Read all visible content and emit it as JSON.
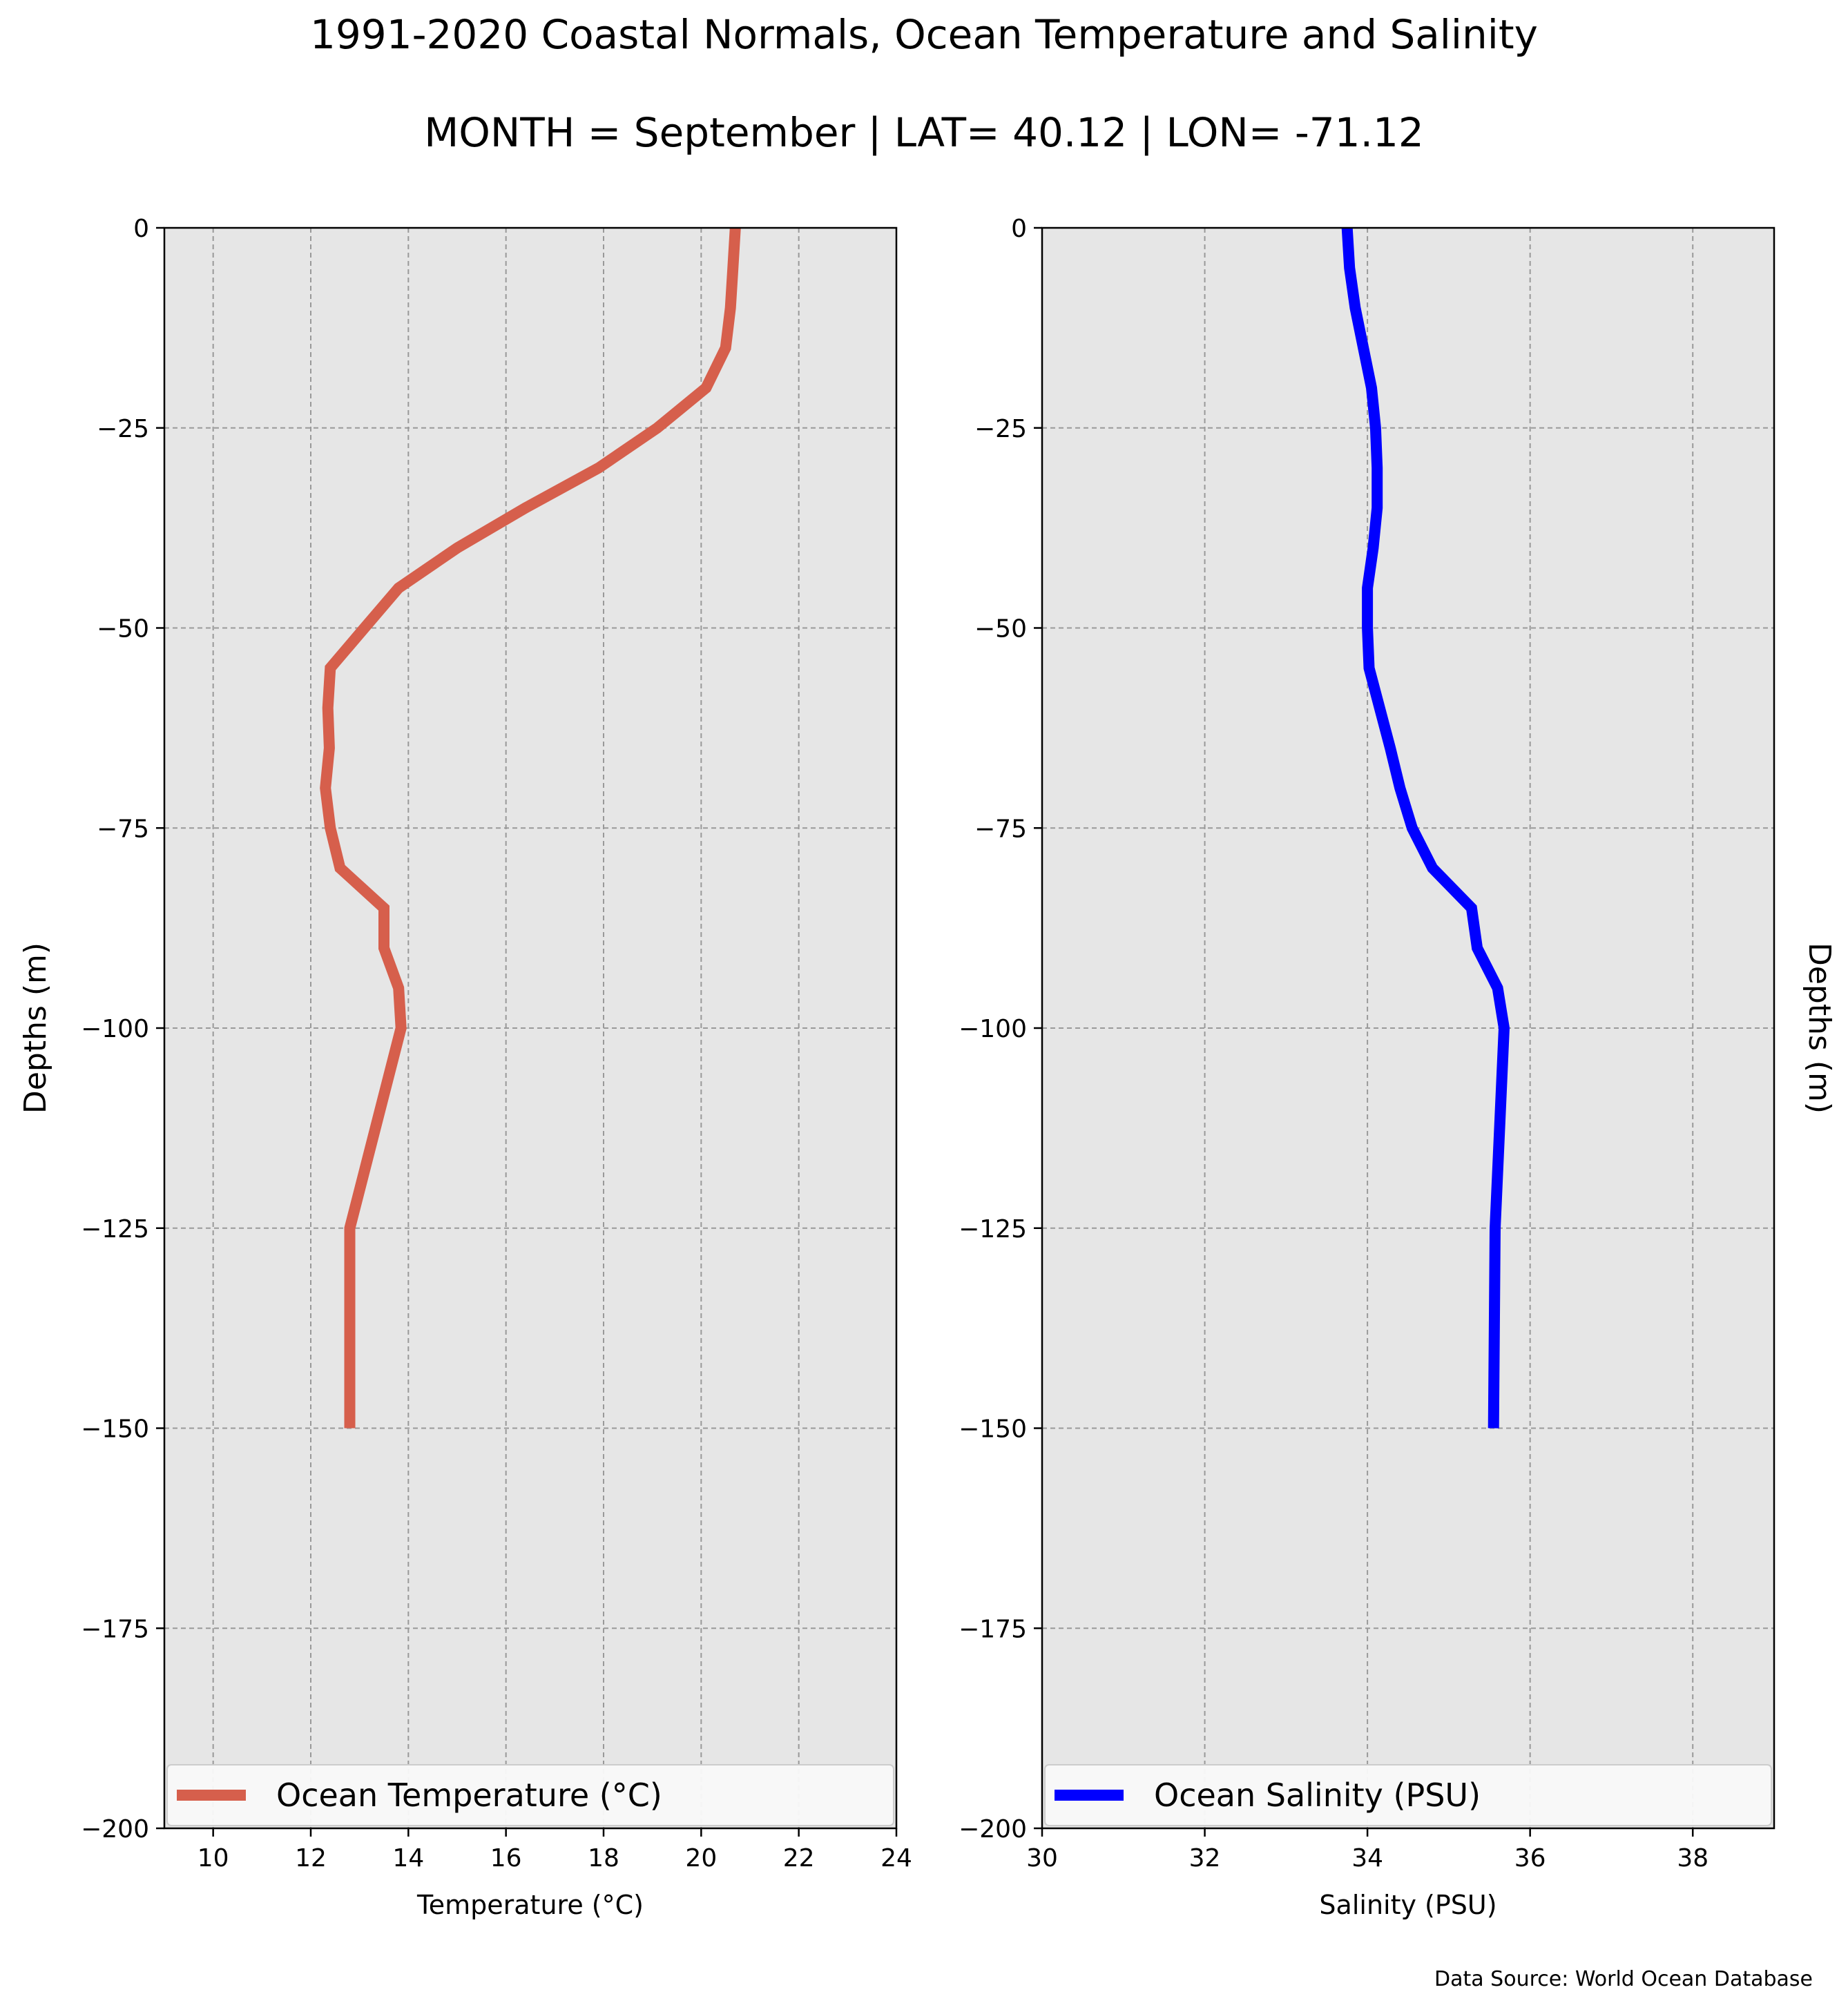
{
  "title": "1991-2020 Coastal Normals, Ocean Temperature and Salinity",
  "subtitle": "MONTH = September | LAT= 40.12 | LON= -71.12",
  "source": "Data Source: World Ocean Database",
  "colors": {
    "temperature": "#d65f4c",
    "salinity": "#0000ff",
    "plot_bg": "#e6e6e6",
    "grid": "#999999"
  },
  "chart_data": [
    {
      "type": "line",
      "xlabel": "Temperature (°C)",
      "ylabel": "Depths (m)",
      "xlim": [
        9,
        24
      ],
      "ylim": [
        -200,
        0
      ],
      "xticks": [
        10,
        12,
        14,
        16,
        18,
        20,
        22,
        24
      ],
      "yticks": [
        0,
        -25,
        -50,
        -75,
        -100,
        -125,
        -150,
        -175,
        -200
      ],
      "grid": true,
      "legend_position": "bottom",
      "series": [
        {
          "name": "Ocean Temperature (°C)",
          "color": "#d65f4c",
          "points": [
            [
              20.7,
              0
            ],
            [
              20.65,
              -5
            ],
            [
              20.6,
              -10
            ],
            [
              20.5,
              -15
            ],
            [
              20.1,
              -20
            ],
            [
              19.1,
              -25
            ],
            [
              17.9,
              -30
            ],
            [
              16.4,
              -35
            ],
            [
              15.0,
              -40
            ],
            [
              13.8,
              -45
            ],
            [
              13.1,
              -50
            ],
            [
              12.4,
              -55
            ],
            [
              12.35,
              -60
            ],
            [
              12.38,
              -65
            ],
            [
              12.3,
              -70
            ],
            [
              12.4,
              -75
            ],
            [
              12.6,
              -80
            ],
            [
              13.5,
              -85
            ],
            [
              13.5,
              -90
            ],
            [
              13.8,
              -95
            ],
            [
              13.85,
              -100
            ],
            [
              12.8,
              -125
            ],
            [
              12.8,
              -150
            ]
          ]
        }
      ]
    },
    {
      "type": "line",
      "xlabel": "Salinity (PSU)",
      "ylabel": "Depths (m)",
      "xlim": [
        30,
        39
      ],
      "ylim": [
        -200,
        0
      ],
      "xticks": [
        30,
        32,
        34,
        36,
        38
      ],
      "yticks": [
        0,
        -25,
        -50,
        -75,
        -100,
        -125,
        -150,
        -175,
        -200
      ],
      "grid": true,
      "legend_position": "bottom",
      "series": [
        {
          "name": "Ocean Salinity (PSU)",
          "color": "#0000ff",
          "points": [
            [
              33.75,
              0
            ],
            [
              33.78,
              -5
            ],
            [
              33.85,
              -10
            ],
            [
              33.95,
              -15
            ],
            [
              34.05,
              -20
            ],
            [
              34.1,
              -25
            ],
            [
              34.12,
              -30
            ],
            [
              34.12,
              -35
            ],
            [
              34.07,
              -40
            ],
            [
              34.0,
              -45
            ],
            [
              34.0,
              -50
            ],
            [
              34.02,
              -55
            ],
            [
              34.15,
              -60
            ],
            [
              34.28,
              -65
            ],
            [
              34.4,
              -70
            ],
            [
              34.55,
              -75
            ],
            [
              34.8,
              -80
            ],
            [
              35.28,
              -85
            ],
            [
              35.35,
              -90
            ],
            [
              35.6,
              -95
            ],
            [
              35.68,
              -100
            ],
            [
              35.57,
              -125
            ],
            [
              35.55,
              -150
            ]
          ]
        }
      ]
    }
  ]
}
